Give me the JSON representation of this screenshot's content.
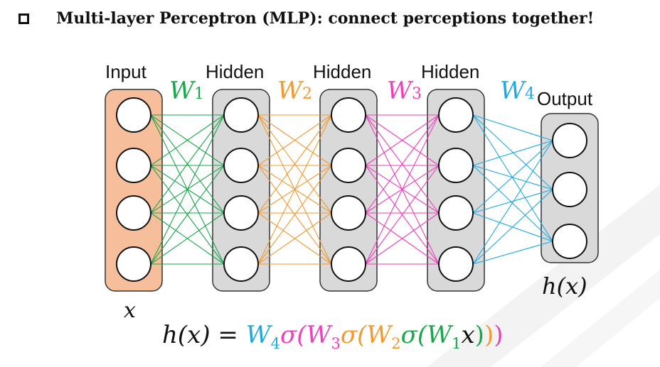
{
  "title": {
    "checkbox_icon": "hollow-square-bullet-icon",
    "text": "Multi-layer Perceptron (MLP): connect perceptions together!"
  },
  "layers": [
    {
      "label": "Input",
      "nodes": 4,
      "fill": "#f7be9c"
    },
    {
      "label": "Hidden",
      "nodes": 4,
      "fill": "#d9d9d9"
    },
    {
      "label": "Hidden",
      "nodes": 4,
      "fill": "#d9d9d9"
    },
    {
      "label": "Hidden",
      "nodes": 4,
      "fill": "#d9d9d9"
    },
    {
      "label": "Output",
      "nodes": 3,
      "fill": "#d9d9d9"
    }
  ],
  "weights": [
    {
      "symbol": "W",
      "sub": "1",
      "color": "#1aa64a"
    },
    {
      "symbol": "W",
      "sub": "2",
      "color": "#f29a2e"
    },
    {
      "symbol": "W",
      "sub": "3",
      "color": "#ee3fbf"
    },
    {
      "symbol": "W",
      "sub": "4",
      "color": "#1fa9e0"
    }
  ],
  "input_symbol": "x",
  "output_symbol": "h(x)",
  "formula": {
    "lhs": "h(x) = ",
    "parts": [
      {
        "text": "W",
        "sub": "4",
        "color": "#1fa9e0"
      },
      {
        "text": "σ(",
        "color": "#ee3fbf"
      },
      {
        "text": "W",
        "sub": "3",
        "color": "#ee3fbf"
      },
      {
        "text": "σ(",
        "color": "#f29a2e"
      },
      {
        "text": "W",
        "sub": "2",
        "color": "#f29a2e"
      },
      {
        "text": "σ(",
        "color": "#1aa64a"
      },
      {
        "text": "W",
        "sub": "1",
        "color": "#1aa64a"
      },
      {
        "text": "x",
        "color": "#111111"
      },
      {
        "text": ")",
        "color": "#1aa64a"
      },
      {
        "text": ")",
        "color": "#f29a2e"
      },
      {
        "text": ")",
        "color": "#ee3fbf"
      }
    ]
  }
}
